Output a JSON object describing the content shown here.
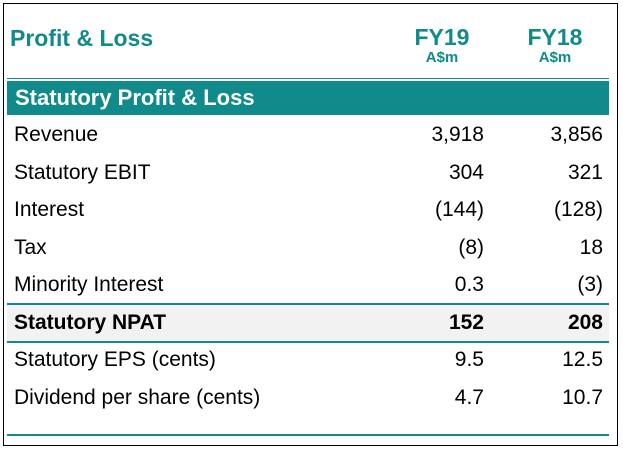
{
  "header": {
    "title": "Profit & Loss",
    "columns": [
      {
        "year": "FY19",
        "unit": "A$m"
      },
      {
        "year": "FY18",
        "unit": "A$m"
      }
    ]
  },
  "section": {
    "title": "Statutory Profit & Loss"
  },
  "rows": [
    {
      "label": "Revenue",
      "fy19": "3,918",
      "fy18": "3,856"
    },
    {
      "label": "Statutory EBIT",
      "fy19": "304",
      "fy18": "321"
    },
    {
      "label": "Interest",
      "fy19": "(144)",
      "fy18": "(128)"
    },
    {
      "label": "Tax",
      "fy19": "(8)",
      "fy18": "18"
    },
    {
      "label": "Minority Interest",
      "fy19": "0.3",
      "fy18": "(3)"
    },
    {
      "label": "Statutory NPAT",
      "fy19": "152",
      "fy18": "208"
    },
    {
      "label": "Statutory EPS (cents)",
      "fy19": "9.5",
      "fy18": "12.5"
    },
    {
      "label": "Dividend per share (cents)",
      "fy19": "4.7",
      "fy18": "10.7"
    }
  ],
  "colors": {
    "accent": "#118a8b",
    "highlight_row": "#f2f2f2"
  }
}
